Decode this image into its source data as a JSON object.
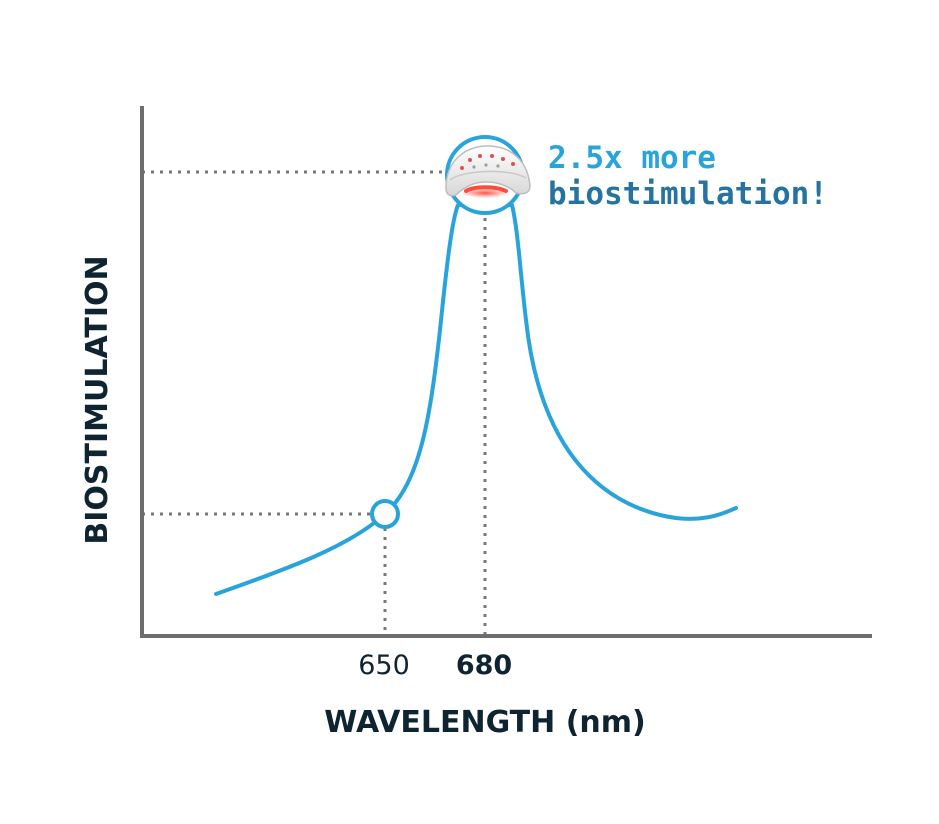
{
  "chart_data": {
    "type": "line",
    "title": "",
    "xlabel": "WAVELENGTH (nm)",
    "ylabel": "BIOSTIMULATION",
    "x_ticks": [
      {
        "label": "650",
        "bold": false
      },
      {
        "label": "680",
        "bold": true
      }
    ],
    "highlight_points": [
      {
        "x_label": "650",
        "relative_biostimulation": 1.0
      },
      {
        "x_label": "680",
        "relative_biostimulation": 2.5
      }
    ],
    "annotation": {
      "line1": "2.5x more",
      "line2": "biostimulation!"
    },
    "grid": false,
    "y_tick_labels": false,
    "colors": {
      "curve": "#29a4db",
      "axis": "#6d6d6d",
      "guide": "#777777",
      "text": "#0f2431",
      "annotation_line1": "#29a4db",
      "annotation_line2": "#25739e",
      "laser_glow": "#ff4a3d"
    },
    "icons": {
      "peak_marker": "helmet-icon"
    }
  }
}
